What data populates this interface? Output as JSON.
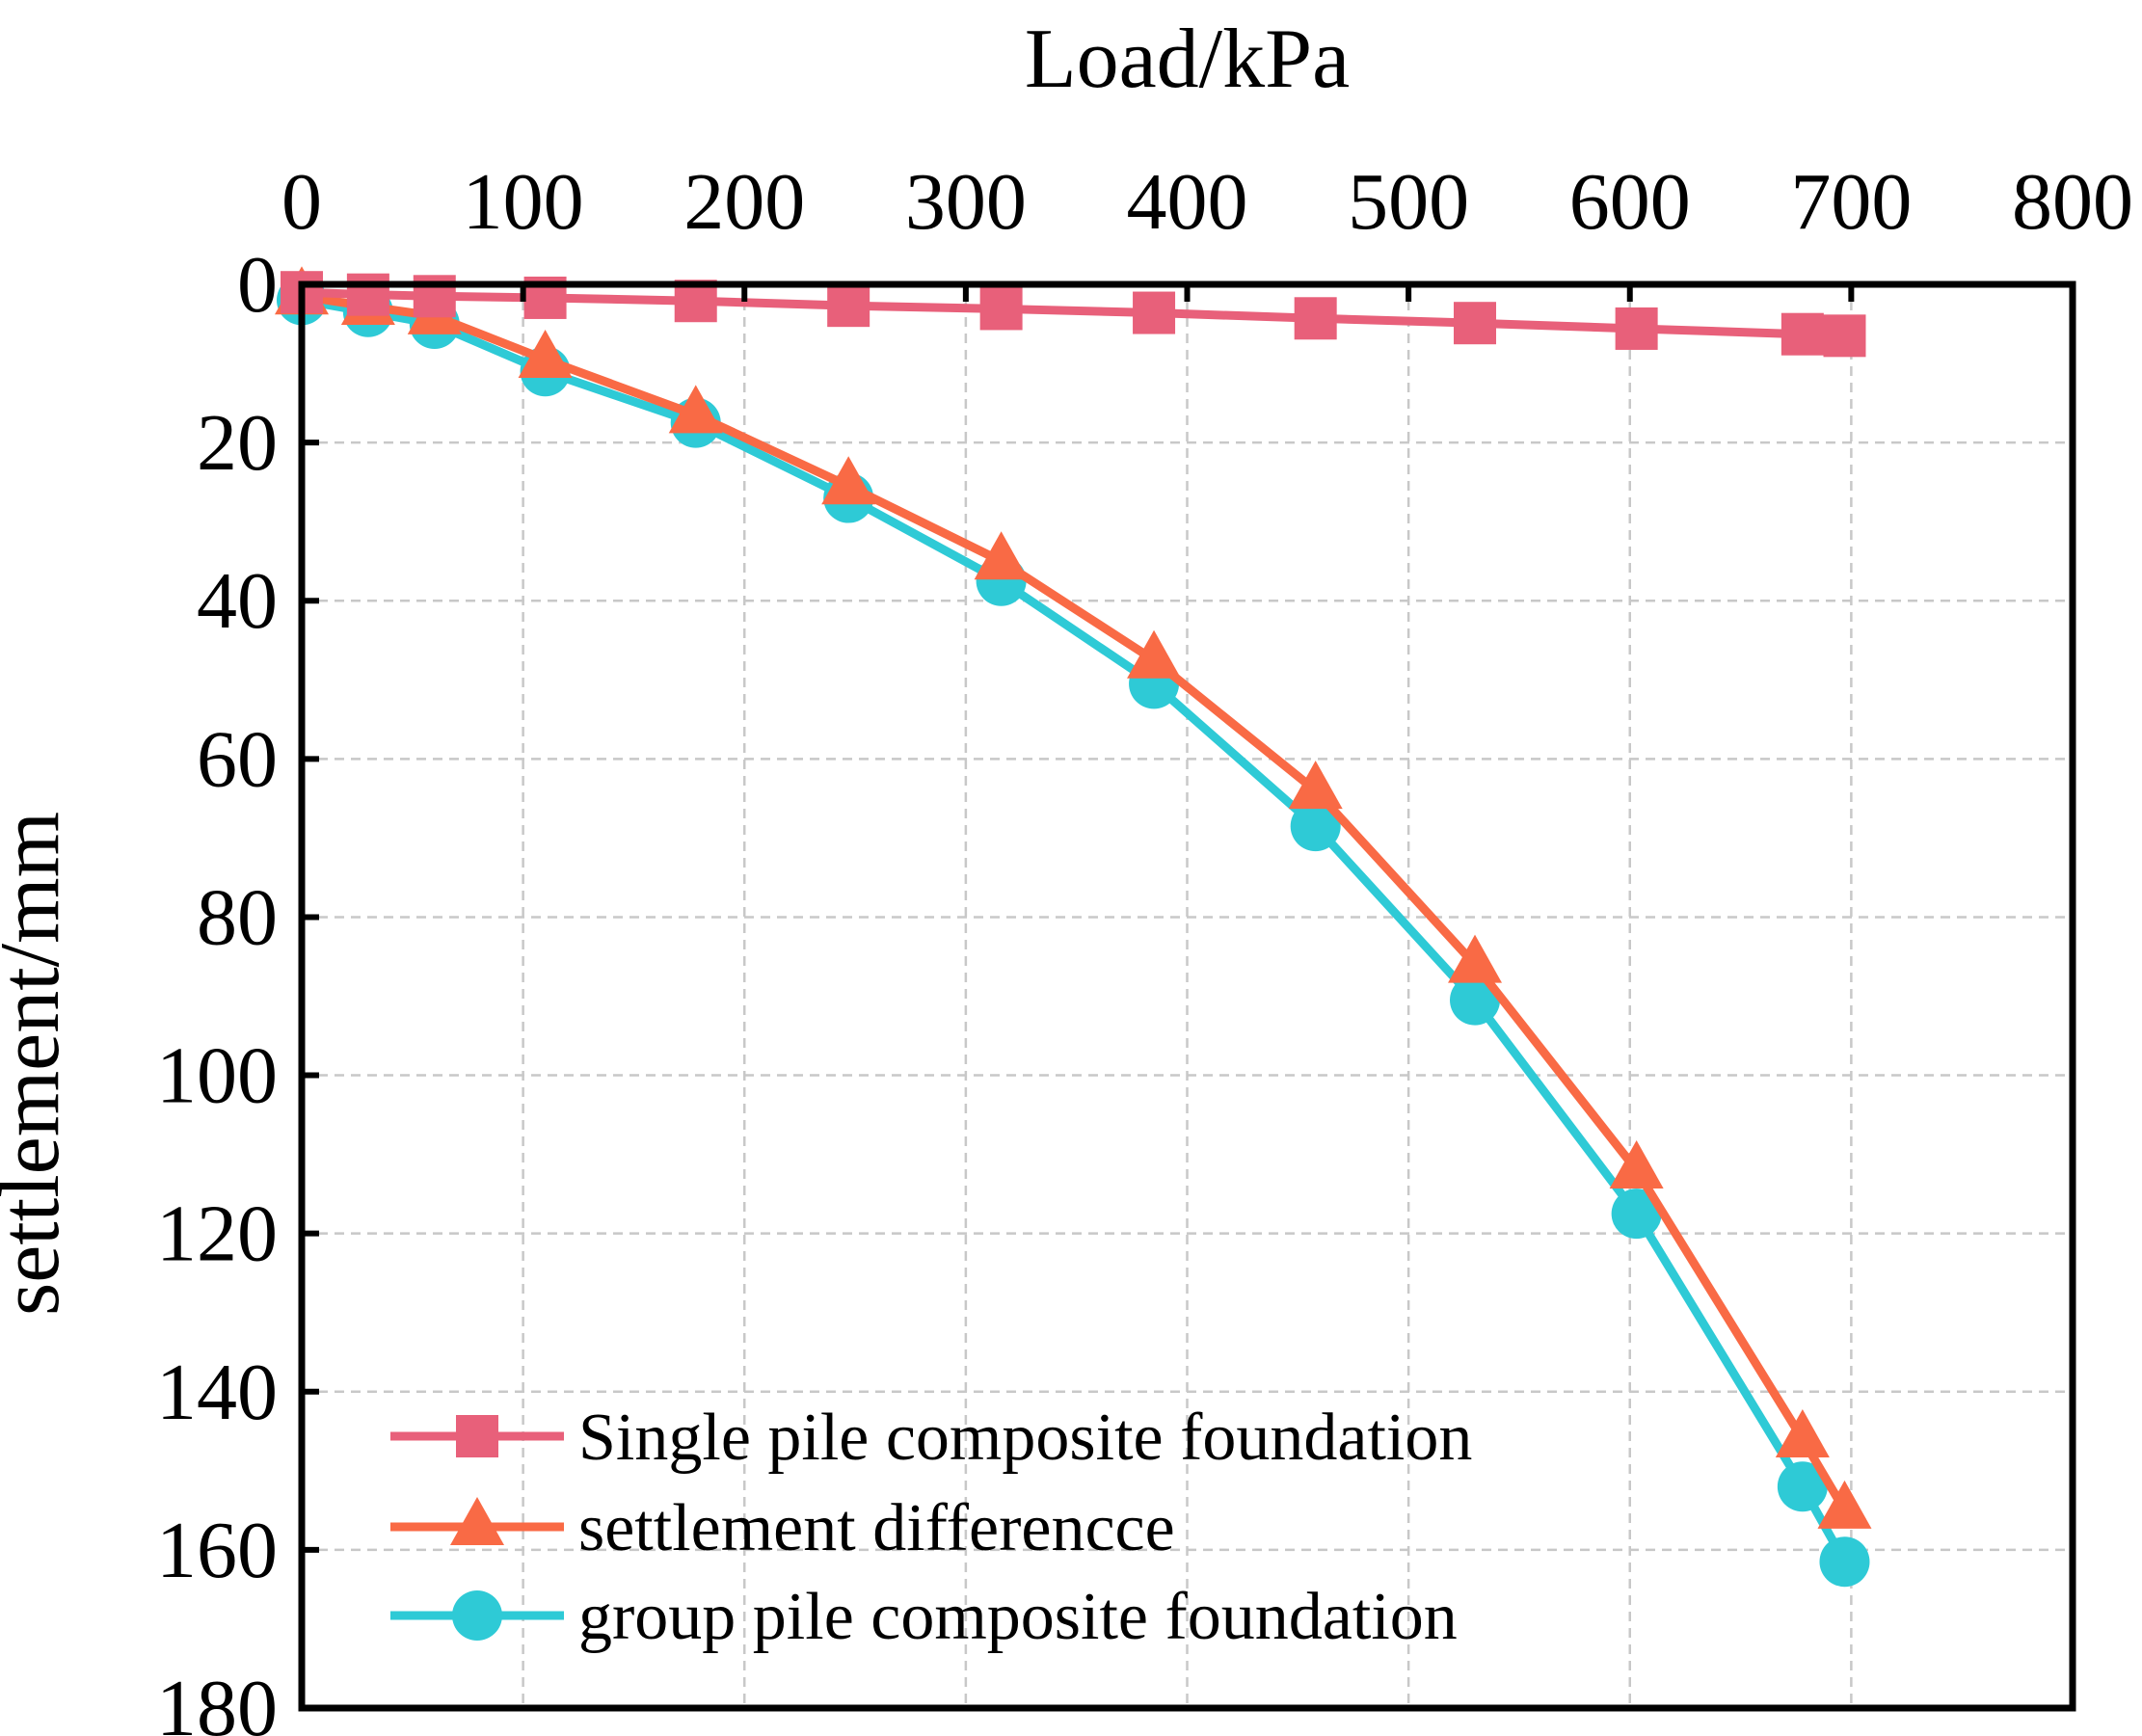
{
  "chart_data": {
    "type": "line",
    "title": "",
    "xlabel": "Load/kPa",
    "ylabel": "settlement/mm",
    "xlim": [
      0,
      800
    ],
    "ylim": [
      0,
      180
    ],
    "y_inverted": true,
    "x_axis_position": "top",
    "grid": true,
    "x_ticks": [
      0,
      100,
      200,
      300,
      400,
      500,
      600,
      700,
      800
    ],
    "y_ticks": [
      0,
      20,
      40,
      60,
      80,
      100,
      120,
      140,
      160,
      180
    ],
    "x_tick_labels": [
      "0",
      "100",
      "200",
      "300",
      "400",
      "500",
      "600",
      "700",
      "800"
    ],
    "y_tick_labels": [
      "0",
      "20",
      "40",
      "60",
      "80",
      "100",
      "120",
      "140",
      "160",
      "180"
    ],
    "legend_position": "bottom-left",
    "series": [
      {
        "name": "Single pile composite foundation",
        "color": "#e8607a",
        "marker": "square",
        "x": [
          0,
          30,
          60,
          110,
          178,
          247,
          316,
          385,
          458,
          530,
          603,
          678,
          697
        ],
        "y": [
          1.0,
          1.3,
          1.5,
          1.7,
          2.1,
          2.7,
          3.1,
          3.6,
          4.3,
          4.9,
          5.6,
          6.3,
          6.5
        ]
      },
      {
        "name": "settlement differencce",
        "color": "#f96a45",
        "marker": "triangle",
        "x": [
          0,
          30,
          60,
          110,
          178,
          247,
          316,
          385,
          458,
          530,
          603,
          678,
          697
        ],
        "y": [
          1.5,
          2.8,
          4.0,
          9.5,
          16.5,
          25.5,
          35.0,
          47.5,
          64.0,
          86.0,
          112.0,
          146.0,
          155.0
        ]
      },
      {
        "name": "group pile composite foundation",
        "color": "#2ecad6",
        "marker": "circle",
        "x": [
          0,
          30,
          60,
          110,
          178,
          247,
          316,
          385,
          458,
          530,
          603,
          678,
          697
        ],
        "y": [
          2.0,
          3.5,
          5.0,
          11.0,
          17.5,
          27.0,
          37.5,
          50.5,
          68.5,
          90.5,
          117.5,
          152.0,
          161.5
        ]
      }
    ]
  }
}
